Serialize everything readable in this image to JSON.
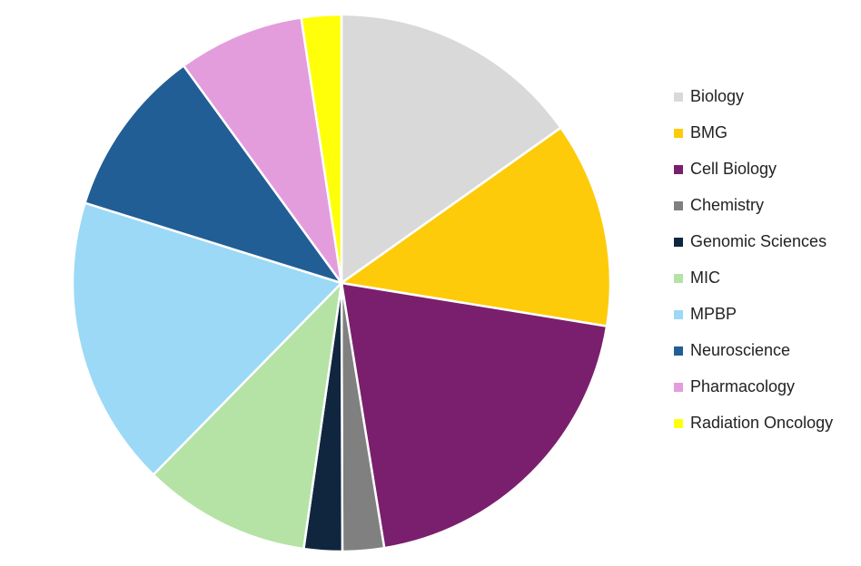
{
  "chart_data": {
    "type": "pie",
    "categories": [
      "Biology",
      "BMG",
      "Cell Biology",
      "Chemistry",
      "Genomic Sciences",
      "MIC",
      "MPBP",
      "Neuroscience",
      "Pharmacology",
      "Radiation Oncology"
    ],
    "values": [
      15.2,
      12.4,
      19.9,
      2.5,
      2.3,
      10.1,
      17.5,
      10.2,
      7.6,
      2.4
    ],
    "colors": [
      "#d9d9d9",
      "#fdcb0a",
      "#7a1f6d",
      "#808080",
      "#10263f",
      "#b4e3a5",
      "#9bd9f6",
      "#215e95",
      "#e39ddc",
      "#ffff0a"
    ],
    "legend": "right"
  }
}
